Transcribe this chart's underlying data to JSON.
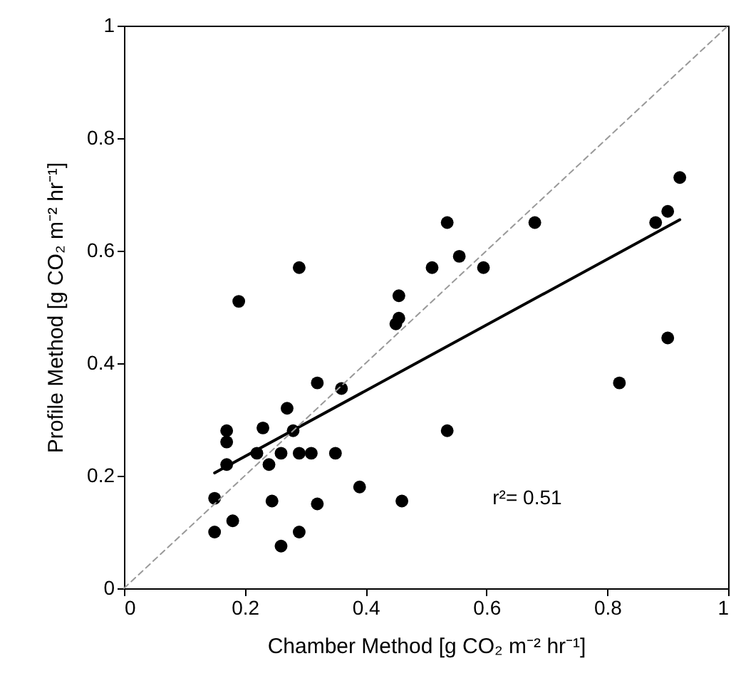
{
  "chart_data": {
    "type": "scatter",
    "xlabel": "Chamber Method [g CO₂ m⁻² hr⁻¹]",
    "ylabel": "Profile Method [g CO₂ m⁻² hr⁻¹]",
    "xlim": [
      0,
      1
    ],
    "ylim": [
      0,
      1
    ],
    "xticks": [
      0,
      0.2,
      0.4,
      0.6,
      0.8,
      1
    ],
    "yticks": [
      0,
      0.2,
      0.4,
      0.6,
      0.8,
      1
    ],
    "grid": false,
    "annotations": [
      "r²= 0.51"
    ],
    "series": [
      {
        "marker": "circle",
        "color": "#000000",
        "x": [
          0.15,
          0.15,
          0.17,
          0.17,
          0.17,
          0.18,
          0.19,
          0.22,
          0.23,
          0.24,
          0.245,
          0.26,
          0.26,
          0.27,
          0.28,
          0.29,
          0.29,
          0.29,
          0.31,
          0.32,
          0.32,
          0.35,
          0.36,
          0.39,
          0.45,
          0.455,
          0.455,
          0.46,
          0.51,
          0.535,
          0.535,
          0.555,
          0.595,
          0.68,
          0.82,
          0.88,
          0.9,
          0.9,
          0.92
        ],
        "values": [
          0.16,
          0.1,
          0.28,
          0.26,
          0.22,
          0.12,
          0.51,
          0.24,
          0.285,
          0.22,
          0.155,
          0.24,
          0.075,
          0.32,
          0.28,
          0.24,
          0.1,
          0.57,
          0.24,
          0.365,
          0.15,
          0.24,
          0.355,
          0.18,
          0.47,
          0.48,
          0.52,
          0.155,
          0.57,
          0.65,
          0.28,
          0.59,
          0.57,
          0.65,
          0.365,
          0.65,
          0.67,
          0.445,
          0.73
        ]
      },
      {
        "type": "line",
        "marker": "none",
        "color": "#000000",
        "line_style": "solid",
        "x": [
          0.15,
          0.92
        ],
        "values": [
          0.205,
          0.655
        ]
      },
      {
        "type": "line",
        "marker": "none",
        "color": "#999999",
        "line_style": "dashed",
        "x": [
          0,
          1
        ],
        "values": [
          0,
          1
        ]
      }
    ]
  }
}
